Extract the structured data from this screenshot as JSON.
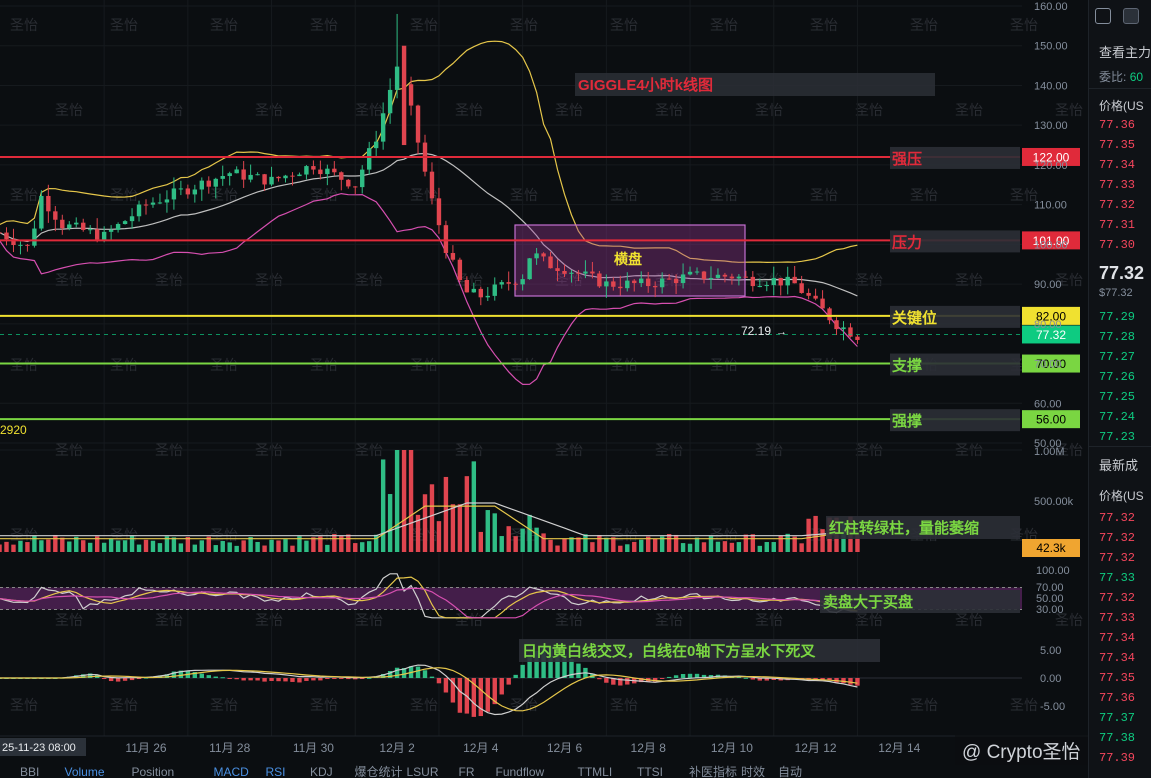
{
  "chart_data": {
    "type": "candlestick",
    "title": "GIGGLE4小时k线图",
    "price_axis_ticks": [
      160.0,
      150.0,
      140.0,
      130.0,
      120.0,
      110.0,
      100.0,
      90.0,
      80.0,
      70.0,
      60.0,
      50.0
    ],
    "date_ticks": [
      "11月 26",
      "11月 28",
      "11月 30",
      "12月 2",
      "12月 4",
      "12月 6",
      "12月 8",
      "12月 10",
      "12月 12",
      "12月 14"
    ],
    "crosshair_date": "25-11-23 08:00",
    "low_marker": "72.19",
    "left_value": "2920",
    "range_box_label": "横盘",
    "levels": [
      {
        "label": "强压",
        "value": 122.0,
        "price_text": "122.00",
        "color": "#e02a3a"
      },
      {
        "label": "压力",
        "value": 101.0,
        "price_text": "101.00",
        "color": "#e02a3a"
      },
      {
        "label": "关键位",
        "value": 82.0,
        "price_text": "82.00",
        "color": "#f0e130"
      },
      {
        "label": "",
        "value": 77.32,
        "price_text": "77.32",
        "color": "#0ecb81"
      },
      {
        "label": "支撑",
        "value": 70.0,
        "price_text": "70.00",
        "color": "#7ad642"
      },
      {
        "label": "强撑",
        "value": 56.0,
        "price_text": "56.00",
        "color": "#7ad642"
      }
    ],
    "volume": {
      "ticks": [
        "1.00M",
        "500.00k"
      ],
      "current": "42.3k",
      "annotation": "红柱转绿柱，量能萎缩"
    },
    "rsi": {
      "ticks": [
        "100.00",
        "70.00",
        "50.00",
        "30.00"
      ],
      "annotation": "卖盘大于买盘"
    },
    "macd": {
      "ticks": [
        "5.00",
        "0.00",
        "-5.00"
      ],
      "annotation": "日内黄白线交叉，白线在0轴下方呈水下死叉"
    },
    "watermark": "圣怡",
    "footer_brand": "@ Crypto圣怡",
    "bottom_tabs": [
      "BBI",
      "Volume",
      "Position",
      "MACD",
      "RSI",
      "KDJ",
      "爆仓统计",
      "LSUR",
      "FR",
      "Fundflow",
      "TTMLI",
      "TTSI",
      "补医指标",
      "时效",
      "自动"
    ]
  },
  "orderbook": {
    "title": "查看主力",
    "ratio_label": "委比:",
    "ratio_value": "60",
    "price_header": "价格(US",
    "asks": [
      "77.36",
      "77.35",
      "77.34",
      "77.33",
      "77.32",
      "77.31",
      "77.30"
    ],
    "last_price": "77.32",
    "last_price_usd": "$77.32",
    "bids": [
      "77.29",
      "77.28",
      "77.27",
      "77.26",
      "77.25",
      "77.24",
      "77.23"
    ],
    "trades_title": "最新成",
    "trades_header": "价格(US",
    "trades": [
      {
        "p": "77.32",
        "side": "red"
      },
      {
        "p": "77.32",
        "side": "red"
      },
      {
        "p": "77.32",
        "side": "red"
      },
      {
        "p": "77.33",
        "side": "green"
      },
      {
        "p": "77.32",
        "side": "red"
      },
      {
        "p": "77.33",
        "side": "red"
      },
      {
        "p": "77.34",
        "side": "red"
      },
      {
        "p": "77.34",
        "side": "red"
      },
      {
        "p": "77.35",
        "side": "red"
      },
      {
        "p": "77.36",
        "side": "red"
      },
      {
        "p": "77.37",
        "side": "green"
      },
      {
        "p": "77.38",
        "side": "green"
      },
      {
        "p": "77.39",
        "side": "red"
      }
    ]
  }
}
